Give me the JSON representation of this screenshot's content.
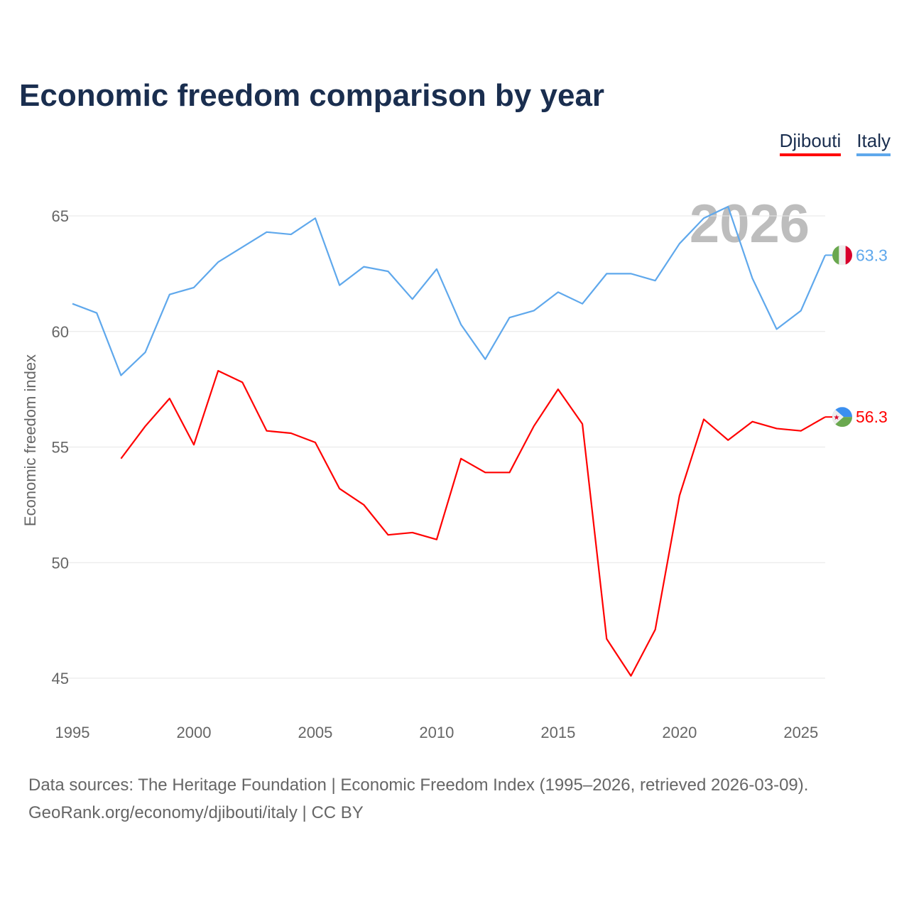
{
  "chart_data": {
    "type": "line",
    "title": "Economic freedom comparison by year",
    "ylabel": "Economic freedom index",
    "xlabel": "",
    "xlim": [
      1995,
      2026
    ],
    "ylim": [
      45,
      65
    ],
    "x_ticks": [
      "1995",
      "2000",
      "2005",
      "2010",
      "2015",
      "2020",
      "2025"
    ],
    "y_ticks": [
      "45",
      "50",
      "55",
      "60",
      "65"
    ],
    "grid": true,
    "legend_placement": "top-right",
    "year_watermark": "2026",
    "series": [
      {
        "name": "Djibouti",
        "color": "#ff0000",
        "flag": "djibouti-flag",
        "end_label": "56.3",
        "x": [
          1997,
          1998,
          1999,
          2000,
          2001,
          2002,
          2003,
          2004,
          2005,
          2006,
          2007,
          2008,
          2009,
          2010,
          2011,
          2012,
          2013,
          2014,
          2015,
          2016,
          2017,
          2018,
          2019,
          2020,
          2021,
          2022,
          2023,
          2024,
          2025,
          2026
        ],
        "values": [
          54.5,
          55.9,
          57.1,
          55.1,
          58.3,
          57.8,
          55.7,
          55.6,
          55.2,
          53.2,
          52.5,
          51.2,
          51.3,
          51.0,
          54.5,
          53.9,
          53.9,
          55.9,
          57.5,
          56.0,
          46.7,
          45.1,
          47.1,
          52.9,
          56.2,
          55.3,
          56.1,
          55.8,
          55.7,
          56.3
        ]
      },
      {
        "name": "Italy",
        "color": "#5fa8ec",
        "flag": "italy-flag",
        "end_label": "63.3",
        "x": [
          1995,
          1996,
          1997,
          1998,
          1999,
          2000,
          2001,
          2002,
          2003,
          2004,
          2005,
          2006,
          2007,
          2008,
          2009,
          2010,
          2011,
          2012,
          2013,
          2014,
          2015,
          2016,
          2017,
          2018,
          2019,
          2020,
          2021,
          2022,
          2023,
          2024,
          2025,
          2026
        ],
        "values": [
          61.2,
          60.8,
          58.1,
          59.1,
          61.6,
          61.9,
          63.0,
          63.65,
          64.3,
          64.2,
          64.9,
          62.0,
          62.8,
          62.6,
          61.4,
          62.7,
          60.3,
          58.8,
          60.6,
          60.9,
          61.7,
          61.2,
          62.5,
          62.5,
          62.2,
          63.8,
          64.9,
          65.4,
          62.3,
          60.1,
          60.9,
          63.3
        ]
      }
    ]
  },
  "footer": {
    "line1": "Data sources: The Heritage Foundation | Economic Freedom Index (1995–2026, retrieved 2026-03-09).",
    "line2": "GeoRank.org/economy/djibouti/italy | CC BY"
  }
}
